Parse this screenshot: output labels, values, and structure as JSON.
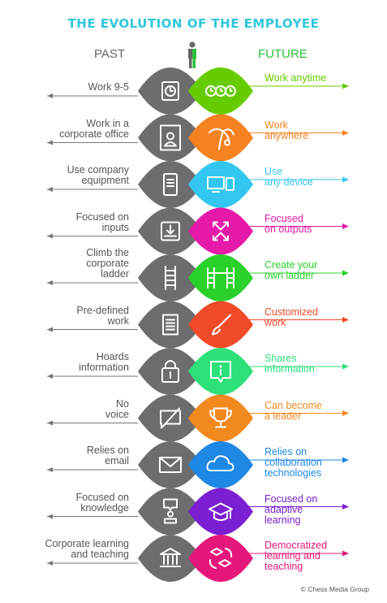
{
  "title": "THE EVOLUTION OF THE EMPLOYEE",
  "past_heading": "PAST",
  "future_heading": "FUTURE",
  "credit": "© Chess Media Group",
  "rows": [
    {
      "past": "Work 9-5",
      "future": "Work anytime",
      "color": "#66cc00",
      "past_icon": "clock-icon",
      "future_icon": "clocks-icon"
    },
    {
      "past": "Work in a\ncorporate office",
      "future": "Work\nanywhere",
      "color": "#f58220",
      "past_icon": "office-icon",
      "future_icon": "palm-tree-icon"
    },
    {
      "past": "Use company\nequipment",
      "future": "Use\nany device",
      "color": "#33c6f0",
      "past_icon": "server-icon",
      "future_icon": "devices-icon"
    },
    {
      "past": "Focused on\ninputs",
      "future": "Focused\non outputs",
      "color": "#e619a8",
      "past_icon": "inbox-icon",
      "future_icon": "outward-arrows-icon"
    },
    {
      "past": "Climb the\ncorporate\nladder",
      "future": "Create your\nown ladder",
      "color": "#2bd12b",
      "past_icon": "ladder-icon",
      "future_icon": "ladders-icon"
    },
    {
      "past": "Pre-defined\nwork",
      "future": "Customized\nwork",
      "color": "#f04a28",
      "past_icon": "document-icon",
      "future_icon": "paintbrush-icon"
    },
    {
      "past": "Hoards\ninformation",
      "future": "Shares\ninformation",
      "color": "#2ee07a",
      "past_icon": "lock-icon",
      "future_icon": "info-bubble-icon"
    },
    {
      "past": "No\nvoice",
      "future": "Can become\na leader",
      "color": "#f2891f",
      "past_icon": "muted-chat-icon",
      "future_icon": "trophy-icon"
    },
    {
      "past": "Relies on\nemail",
      "future": "Relies on\ncollaboration\ntechnologies",
      "color": "#1e88e5",
      "past_icon": "envelope-icon",
      "future_icon": "cloud-icon"
    },
    {
      "past": "Focused on\nknowledge",
      "future": "Focused on\nadaptive\nlearning",
      "color": "#7a1fd1",
      "past_icon": "question-person-icon",
      "future_icon": "graduation-cap-icon"
    },
    {
      "past": "Corporate learning\nand teaching",
      "future": "Democratized\nlearning and\nteaching",
      "color": "#e6177a",
      "past_icon": "institution-icon",
      "future_icon": "shared-caps-icon"
    }
  ]
}
